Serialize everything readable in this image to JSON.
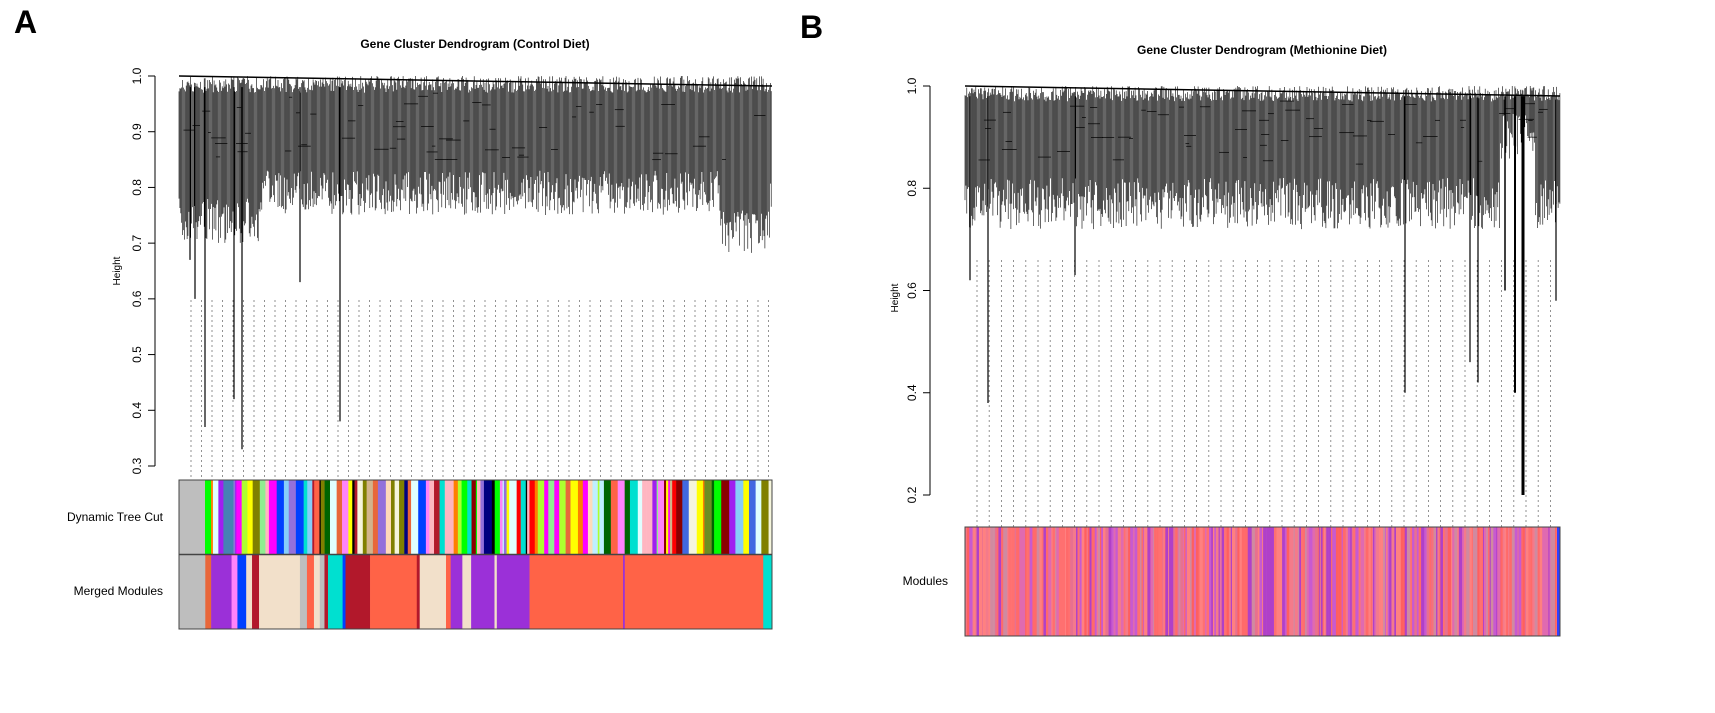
{
  "chart_data": [
    {
      "type": "dendrogram",
      "panel_label": "A",
      "title": "Gene Cluster Dendrogram (Control Diet)",
      "ylabel": "Height",
      "ylim": [
        0.3,
        1.0
      ],
      "yticks": [
        "0.3",
        "0.4",
        "0.5",
        "0.6",
        "0.7",
        "0.8",
        "0.9",
        "1.0"
      ],
      "color_rows": [
        "Dynamic Tree Cut",
        "Merged Modules"
      ],
      "dynamic_palette": [
        "#BEBEBE",
        "#E8673A",
        "#FF7F00",
        "#B2182B",
        "#87CEFA",
        "#FF83FA",
        "#0040FF",
        "#A020F0",
        "#90EE90",
        "#6B8E23",
        "#FF00FF",
        "#ADFF2F",
        "#8B0000",
        "#BFEFFF",
        "#F5F5DC",
        "#00E0D0",
        "#006400",
        "#FFB6C1",
        "#00FF00",
        "#FFFF00",
        "#FF0000",
        "#D2B48C",
        "#000080",
        "#4682B4",
        "#FF6347",
        "#E0FFFF",
        "#808000",
        "#000000",
        "#4169E1",
        "#FFDAB9",
        "#9370DB"
      ],
      "merged_modules": [
        {
          "color": "#BEBEBE",
          "size": 0.045
        },
        {
          "color": "#E8673A",
          "size": 0.01
        },
        {
          "color": "#9B30D8",
          "size": 0.035
        },
        {
          "color": "#FF83FA",
          "size": 0.01
        },
        {
          "color": "#0040FF",
          "size": 0.015
        },
        {
          "color": "#F2E0CA",
          "size": 0.01
        },
        {
          "color": "#B2182B",
          "size": 0.012
        },
        {
          "color": "#F2E0CA",
          "size": 0.07
        },
        {
          "color": "#BEBEBE",
          "size": 0.012
        },
        {
          "color": "#FF6347",
          "size": 0.012
        },
        {
          "color": "#F2E0CA",
          "size": 0.01
        },
        {
          "color": "#BEBEBE",
          "size": 0.008
        },
        {
          "color": "#B2182B",
          "size": 0.006
        },
        {
          "color": "#00E0D0",
          "size": 0.025
        },
        {
          "color": "#0040FF",
          "size": 0.005
        },
        {
          "color": "#B2182B",
          "size": 0.042
        },
        {
          "color": "#FF6347",
          "size": 0.08
        },
        {
          "color": "#B2182B",
          "size": 0.005
        },
        {
          "color": "#F2E0CA",
          "size": 0.045
        },
        {
          "color": "#FF6347",
          "size": 0.008
        },
        {
          "color": "#9B30D8",
          "size": 0.02
        },
        {
          "color": "#F2E0CA",
          "size": 0.015
        },
        {
          "color": "#9B30D8",
          "size": 0.04
        },
        {
          "color": "#F2E0CA",
          "size": 0.004
        },
        {
          "color": "#9B30D8",
          "size": 0.056
        },
        {
          "color": "#FF6347",
          "size": 0.16
        },
        {
          "color": "#9B30D8",
          "size": 0.003
        },
        {
          "color": "#FF6347",
          "size": 0.237
        },
        {
          "color": "#00E0D0",
          "size": 0.015
        }
      ]
    },
    {
      "type": "dendrogram",
      "panel_label": "B",
      "title": "Gene Cluster Dendrogram (Methionine Diet)",
      "ylabel": "Height",
      "ylim": [
        0.2,
        1.0
      ],
      "yticks": [
        "0.2",
        "0.4",
        "0.6",
        "0.8",
        "1.0"
      ],
      "color_rows": [
        "Modules"
      ],
      "module_palette": [
        "#FF6A6A",
        "#FF5F5F",
        "#F47A8A",
        "#E06AB0",
        "#C85AD0",
        "#B040C8",
        "#FF8080",
        "#E87090",
        "#D08AA0",
        "#FF7070"
      ]
    }
  ]
}
